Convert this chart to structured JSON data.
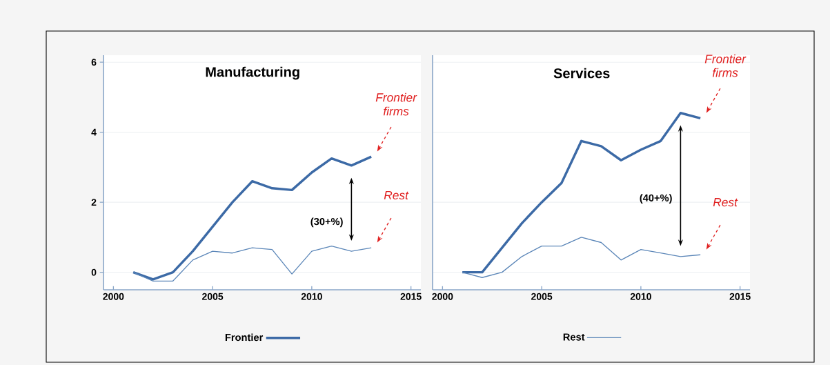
{
  "chart_data": [
    {
      "type": "line",
      "title": "Manufacturing",
      "x": [
        2001,
        2002,
        2003,
        2004,
        2005,
        2006,
        2007,
        2008,
        2009,
        2010,
        2011,
        2012,
        2013
      ],
      "series": [
        {
          "name": "Frontier",
          "color": "#3c6aa6",
          "values": [
            0,
            -0.2,
            0,
            0.6,
            1.3,
            2,
            2.6,
            2.4,
            2.35,
            2.85,
            3.25,
            3.05,
            3.3
          ]
        },
        {
          "color": "#5b86b8",
          "values": [
            0,
            -0.25,
            -0.25,
            0.35,
            0.6,
            0.55,
            0.7,
            0.65,
            -0.05,
            0.6,
            0.75,
            0.6,
            0.7
          ]
        }
      ],
      "xlim": [
        1999.5,
        2015.5
      ],
      "xticks": [
        2000,
        2005,
        2010,
        2015
      ],
      "ylim": [
        -0.5,
        6.2
      ],
      "yticks": [
        0,
        2,
        4,
        6
      ],
      "grid": "y",
      "legend": "bottom",
      "marker": "none",
      "line_style": "solid",
      "annotations": [
        "Frontier firms",
        "Rest",
        "(30+%)"
      ]
    },
    {
      "type": "line",
      "title": "Services",
      "x": [
        2001,
        2002,
        2003,
        2004,
        2005,
        2006,
        2007,
        2008,
        2009,
        2010,
        2011,
        2012,
        2013
      ],
      "series": [
        {
          "color": "#3c6aa6",
          "values": [
            0,
            0,
            0.7,
            1.4,
            2,
            2.55,
            3.75,
            3.6,
            3.2,
            3.5,
            3.75,
            4.55,
            4.4
          ]
        },
        {
          "name": "Rest",
          "color": "#5b86b8",
          "values": [
            0,
            -0.15,
            0,
            0.45,
            0.75,
            0.75,
            1,
            0.85,
            0.35,
            0.65,
            0.55,
            0.45,
            0.5
          ]
        }
      ],
      "xlim": [
        1999.5,
        2015.5
      ],
      "xticks": [
        2000,
        2005,
        2010,
        2015
      ],
      "ylim": [
        -0.5,
        6.2
      ],
      "yticks": [
        0,
        2,
        4,
        6
      ],
      "grid": "y",
      "legend": "bottom",
      "marker": "none",
      "line_style": "solid",
      "tick_labels": "x",
      "annotations": [
        "Frontier firms",
        "Rest",
        "(40+%)"
      ]
    }
  ]
}
